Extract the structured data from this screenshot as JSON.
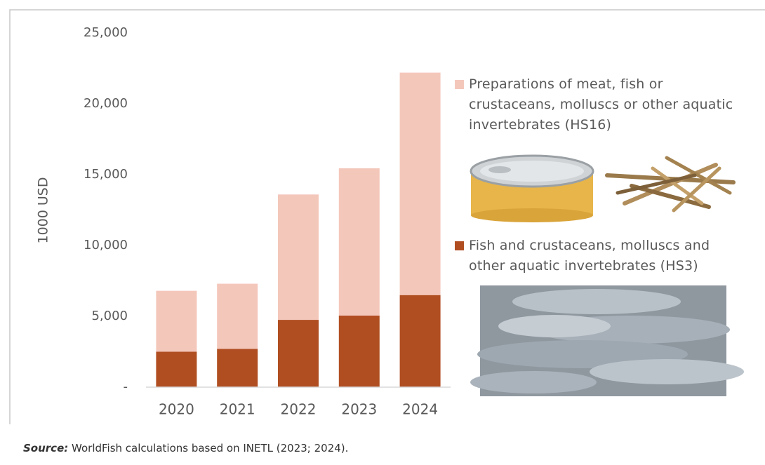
{
  "chart_data": {
    "type": "stacked_bar",
    "y_label": "1000 USD",
    "categories": [
      "2020",
      "2021",
      "2022",
      "2023",
      "2024"
    ],
    "series": [
      {
        "name": "Fish and crustaceans, molluscs and other aquatic invertebrates (HS3)",
        "color": "#b04e21",
        "values": [
          2500,
          2700,
          4750,
          5050,
          6500
        ]
      },
      {
        "name": "Preparations of meat, fish or crustaceans, molluscs or other aquatic invertebrates (HS16)",
        "color": "#f4c7bb",
        "values": [
          4300,
          4600,
          8850,
          10400,
          15700
        ]
      }
    ],
    "ylim": [
      0,
      25000
    ],
    "yticks": [
      {
        "value": 0,
        "label": "-"
      },
      {
        "value": 5000,
        "label": "5,000"
      },
      {
        "value": 10000,
        "label": "10,000"
      },
      {
        "value": 15000,
        "label": "15,000"
      },
      {
        "value": 20000,
        "label": "20,000"
      },
      {
        "value": 25000,
        "label": "25,000"
      }
    ]
  },
  "source": {
    "label": "Source:",
    "text": "WorldFish calculations based on INETL (2023; 2024)."
  }
}
